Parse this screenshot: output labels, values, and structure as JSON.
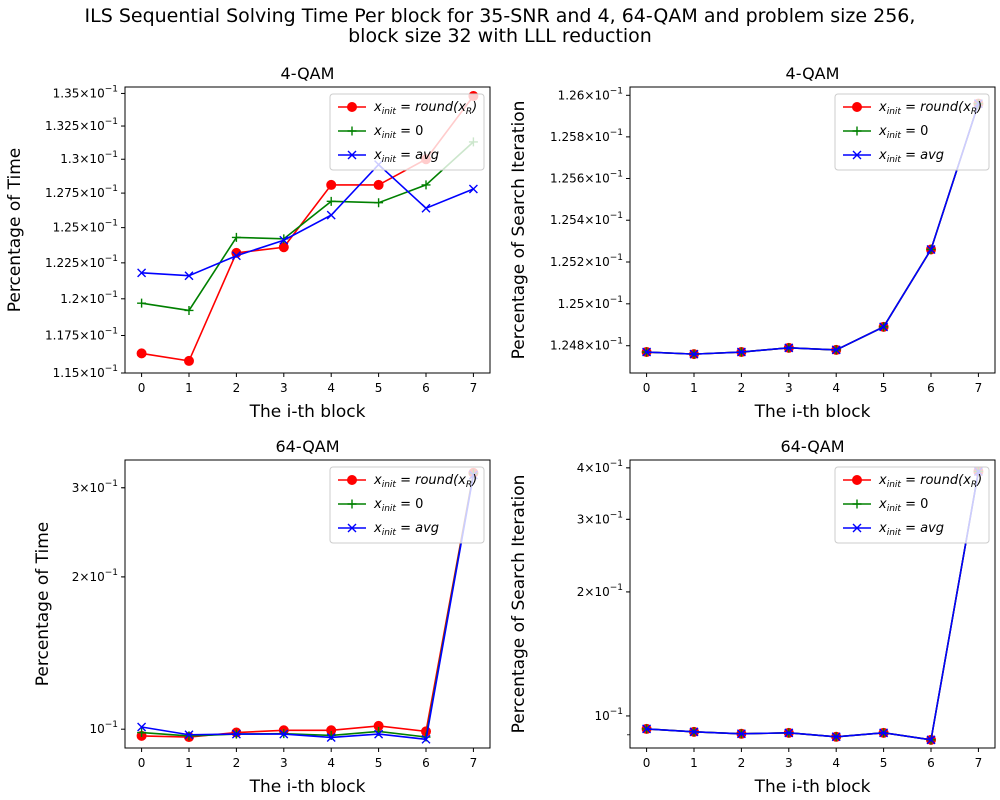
{
  "figure": {
    "title_line1": "ILS Sequential Solving Time Per block for 35-SNR and 4, 64-QAM and problem size 256,",
    "title_line2": "block size 32 with LLL reduction"
  },
  "chart_data": [
    {
      "type": "line",
      "title": "4-QAM",
      "xlabel": "The i-th block",
      "ylabel": "Percentage of Time",
      "yscale": "log",
      "x": [
        0,
        1,
        2,
        3,
        4,
        5,
        6,
        7
      ],
      "ylim": [
        0.115,
        0.1355
      ],
      "yticks": [
        {
          "value": 0.115,
          "label": "1.15 × 10⁻¹"
        },
        {
          "value": 0.1175,
          "label": "1.175 × 10⁻¹"
        },
        {
          "value": 0.12,
          "label": "1.2 × 10⁻¹"
        },
        {
          "value": 0.1225,
          "label": "1.225 × 10⁻¹"
        },
        {
          "value": 0.125,
          "label": "1.25 × 10⁻¹"
        },
        {
          "value": 0.1275,
          "label": "1.275 × 10⁻¹"
        },
        {
          "value": 0.13,
          "label": "1.3 × 10⁻¹"
        },
        {
          "value": 0.1325,
          "label": "1.325 × 10⁻¹"
        },
        {
          "value": 0.135,
          "label": "1.35 × 10⁻¹"
        }
      ],
      "legend_position": "top-right",
      "series": [
        {
          "name": "x_init = round(x_R)",
          "color": "#ff0000",
          "marker": "circle",
          "values": [
            0.1163,
            0.1158,
            0.1232,
            0.1236,
            0.1281,
            0.1281,
            0.13,
            0.1348
          ]
        },
        {
          "name": "x_init = 0",
          "color": "#008000",
          "marker": "plus",
          "values": [
            0.1197,
            0.1192,
            0.1243,
            0.1242,
            0.1269,
            0.1268,
            0.1281,
            0.1313
          ]
        },
        {
          "name": "x_init = avg",
          "color": "#0000ff",
          "marker": "x",
          "values": [
            0.1218,
            0.1216,
            0.123,
            0.1241,
            0.1259,
            0.1296,
            0.1264,
            0.1278
          ]
        }
      ]
    },
    {
      "type": "line",
      "title": "4-QAM",
      "xlabel": "The i-th block",
      "ylabel": "Percentage of Search Iteration",
      "yscale": "log",
      "x": [
        0,
        1,
        2,
        3,
        4,
        5,
        6,
        7
      ],
      "ylim": [
        0.12467,
        0.12604
      ],
      "yticks": [
        {
          "value": 0.1248,
          "label": "1.248 × 10⁻¹"
        },
        {
          "value": 0.125,
          "label": "1.25 × 10⁻¹"
        },
        {
          "value": 0.1252,
          "label": "1.252 × 10⁻¹"
        },
        {
          "value": 0.1254,
          "label": "1.254 × 10⁻¹"
        },
        {
          "value": 0.1256,
          "label": "1.256 × 10⁻¹"
        },
        {
          "value": 0.1258,
          "label": "1.258 × 10⁻¹"
        },
        {
          "value": 0.126,
          "label": "1.26 × 10⁻¹"
        }
      ],
      "legend_position": "top-right",
      "series": [
        {
          "name": "x_init = round(x_R)",
          "color": "#ff0000",
          "marker": "circle",
          "values": [
            0.12477,
            0.12476,
            0.12477,
            0.12479,
            0.12478,
            0.12489,
            0.12526,
            0.12596
          ]
        },
        {
          "name": "x_init = 0",
          "color": "#008000",
          "marker": "plus",
          "values": [
            0.12477,
            0.12476,
            0.12477,
            0.12479,
            0.12478,
            0.12489,
            0.12526,
            0.12596
          ]
        },
        {
          "name": "x_init = avg",
          "color": "#0000ff",
          "marker": "x",
          "values": [
            0.12477,
            0.12476,
            0.12477,
            0.12479,
            0.12478,
            0.12489,
            0.12526,
            0.12596
          ]
        }
      ]
    },
    {
      "type": "line",
      "title": "64-QAM",
      "xlabel": "The i-th block",
      "ylabel": "Percentage of Time",
      "yscale": "log",
      "x": [
        0,
        1,
        2,
        3,
        4,
        5,
        6,
        7
      ],
      "ylim": [
        0.0918,
        0.3404
      ],
      "yticks": [
        {
          "value": 0.1,
          "label": "10⁻¹",
          "major": true
        },
        {
          "value": 0.2,
          "label": "2 × 10⁻¹"
        },
        {
          "value": 0.3,
          "label": "3 × 10⁻¹"
        }
      ],
      "legend_position": "top-right",
      "series": [
        {
          "name": "x_init = round(x_R)",
          "color": "#ff0000",
          "marker": "circle",
          "values": [
            0.097,
            0.0965,
            0.0985,
            0.0995,
            0.0995,
            0.1015,
            0.099,
            0.321
          ]
        },
        {
          "name": "x_init = 0",
          "color": "#008000",
          "marker": "plus",
          "values": [
            0.0985,
            0.097,
            0.0978,
            0.098,
            0.0972,
            0.099,
            0.0965,
            0.32
          ]
        },
        {
          "name": "x_init = avg",
          "color": "#0000ff",
          "marker": "x",
          "values": [
            0.101,
            0.0975,
            0.0978,
            0.0978,
            0.0963,
            0.0978,
            0.0955,
            0.318
          ]
        }
      ]
    },
    {
      "type": "line",
      "title": "64-QAM",
      "xlabel": "The i-th block",
      "ylabel": "Percentage of Search Iteration",
      "yscale": "log",
      "x": [
        0,
        1,
        2,
        3,
        4,
        5,
        6,
        7
      ],
      "ylim": [
        0.0836,
        0.4179
      ],
      "yticks": [
        {
          "value": 0.1,
          "label": "10⁻¹",
          "major": true
        },
        {
          "value": 0.2,
          "label": "2 × 10⁻¹"
        },
        {
          "value": 0.3,
          "label": "3 × 10⁻¹"
        },
        {
          "value": 0.4,
          "label": "4 × 10⁻¹"
        }
      ],
      "legend_position": "top-right",
      "series": [
        {
          "name": "x_init = round(x_R)",
          "color": "#ff0000",
          "marker": "circle",
          "values": [
            0.093,
            0.0915,
            0.0905,
            0.091,
            0.089,
            0.091,
            0.0875,
            0.392
          ]
        },
        {
          "name": "x_init = 0",
          "color": "#008000",
          "marker": "plus",
          "values": [
            0.093,
            0.0915,
            0.0905,
            0.091,
            0.089,
            0.091,
            0.0875,
            0.392
          ]
        },
        {
          "name": "x_init = avg",
          "color": "#0000ff",
          "marker": "x",
          "values": [
            0.093,
            0.0915,
            0.0905,
            0.091,
            0.089,
            0.091,
            0.0875,
            0.392
          ]
        }
      ]
    }
  ]
}
